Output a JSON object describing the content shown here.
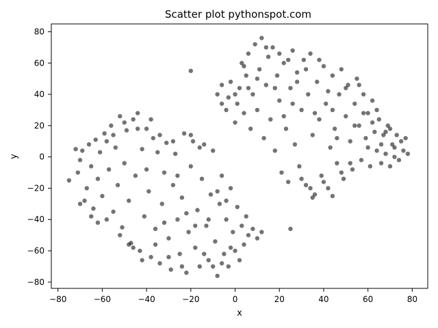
{
  "chart_data": {
    "type": "scatter",
    "title": "Scatter plot pythonspot.com",
    "xlabel": "x",
    "ylabel": "y",
    "xlim": [
      -83,
      87
    ],
    "ylim": [
      -84,
      85
    ],
    "xticks": [
      -80,
      -60,
      -40,
      -20,
      0,
      20,
      40,
      60,
      80
    ],
    "yticks": [
      -80,
      -60,
      -40,
      -20,
      0,
      20,
      40,
      60,
      80
    ],
    "xtick_labels": [
      "−80",
      "−60",
      "−40",
      "−20",
      "0",
      "20",
      "40",
      "60",
      "80"
    ],
    "ytick_labels": [
      "−80",
      "−60",
      "−40",
      "−20",
      "0",
      "20",
      "40",
      "60",
      "80"
    ],
    "grid": false,
    "point_color": "#000000",
    "point_alpha": 0.55,
    "series": [
      {
        "points": [
          [
            -75,
            -15
          ],
          [
            -72,
            5
          ],
          [
            -71,
            -10
          ],
          [
            -70,
            -2
          ],
          [
            -69,
            4
          ],
          [
            -68,
            -28
          ],
          [
            -67,
            -20
          ],
          [
            -66,
            8
          ],
          [
            -65,
            -6
          ],
          [
            -64,
            -33
          ],
          [
            -63,
            11
          ],
          [
            -62,
            -14
          ],
          [
            -61,
            3
          ],
          [
            -60,
            -25
          ],
          [
            -59,
            15
          ],
          [
            -58,
            -40
          ],
          [
            -57,
            -8
          ],
          [
            -56,
            20
          ],
          [
            -55,
            -35
          ],
          [
            -54,
            6
          ],
          [
            -53,
            -18
          ],
          [
            -52,
            26
          ],
          [
            -51,
            -45
          ],
          [
            -50,
            -4
          ],
          [
            -49,
            17
          ],
          [
            -48,
            -28
          ],
          [
            -47,
            -55
          ],
          [
            -46,
            24
          ],
          [
            -45,
            -12
          ],
          [
            -44,
            28
          ],
          [
            -43,
            -60
          ],
          [
            -42,
            5
          ],
          [
            -41,
            -38
          ],
          [
            -40,
            18
          ],
          [
            -39,
            -22
          ],
          [
            -38,
            -64
          ],
          [
            -37,
            12
          ],
          [
            -36,
            -46
          ],
          [
            -35,
            3
          ],
          [
            -34,
            -68
          ],
          [
            -33,
            -30
          ],
          [
            -32,
            -10
          ],
          [
            -31,
            9
          ],
          [
            -30,
            -52
          ],
          [
            -29,
            -72
          ],
          [
            -28,
            -18
          ],
          [
            -27,
            2
          ],
          [
            -26,
            -40
          ],
          [
            -25,
            -62
          ],
          [
            -24,
            -26
          ],
          [
            -23,
            15
          ],
          [
            -22,
            -74
          ],
          [
            -21,
            -48
          ],
          [
            -20,
            -6
          ],
          [
            -19,
            10
          ],
          [
            -18,
            -58
          ],
          [
            -17,
            -34
          ],
          [
            -16,
            -70
          ],
          [
            -15,
            -14
          ],
          [
            -14,
            8
          ],
          [
            -13,
            -44
          ],
          [
            -12,
            -66
          ],
          [
            -11,
            -24
          ],
          [
            -10,
            4
          ],
          [
            -9,
            -54
          ],
          [
            -8,
            -76
          ],
          [
            -7,
            -30
          ],
          [
            -6,
            -12
          ],
          [
            -5,
            -62
          ],
          [
            -4,
            -40
          ],
          [
            -3,
            -70
          ],
          [
            -2,
            -20
          ],
          [
            -1,
            -48
          ],
          [
            0,
            -60
          ],
          [
            1,
            -32
          ],
          [
            2,
            -66
          ],
          [
            3,
            -44
          ],
          [
            4,
            -56
          ],
          [
            5,
            -38
          ],
          [
            6,
            -50
          ],
          [
            8,
            -46
          ],
          [
            10,
            -52
          ],
          [
            12,
            -48
          ],
          [
            -70,
            -30
          ],
          [
            -65,
            -38
          ],
          [
            -62,
            -42
          ],
          [
            -58,
            10
          ],
          [
            -55,
            14
          ],
          [
            -52,
            -50
          ],
          [
            -50,
            22
          ],
          [
            -46,
            -58
          ],
          [
            -44,
            18
          ],
          [
            -42,
            -66
          ],
          [
            -40,
            -8
          ],
          [
            -38,
            24
          ],
          [
            -36,
            -56
          ],
          [
            -34,
            14
          ],
          [
            -32,
            -42
          ],
          [
            -30,
            -64
          ],
          [
            -28,
            10
          ],
          [
            -26,
            -12
          ],
          [
            -24,
            -70
          ],
          [
            -22,
            -36
          ],
          [
            -20,
            14
          ],
          [
            -18,
            -44
          ],
          [
            -16,
            6
          ],
          [
            -14,
            -62
          ],
          [
            -12,
            -40
          ],
          [
            -10,
            -70
          ],
          [
            -8,
            -22
          ],
          [
            -6,
            -68
          ],
          [
            -4,
            -28
          ],
          [
            -2,
            -58
          ],
          [
            -48,
            -56
          ],
          [
            -20,
            55
          ],
          [
            25,
            -46
          ]
        ]
      },
      {
        "points": [
          [
            -8,
            40
          ],
          [
            -6,
            46
          ],
          [
            -4,
            30
          ],
          [
            -3,
            38
          ],
          [
            -2,
            48
          ],
          [
            0,
            22
          ],
          [
            1,
            34
          ],
          [
            2,
            44
          ],
          [
            3,
            60
          ],
          [
            4,
            28
          ],
          [
            5,
            52
          ],
          [
            6,
            66
          ],
          [
            7,
            18
          ],
          [
            8,
            40
          ],
          [
            9,
            72
          ],
          [
            10,
            30
          ],
          [
            11,
            56
          ],
          [
            12,
            76
          ],
          [
            13,
            12
          ],
          [
            14,
            46
          ],
          [
            15,
            64
          ],
          [
            16,
            24
          ],
          [
            17,
            70
          ],
          [
            18,
            4
          ],
          [
            19,
            52
          ],
          [
            20,
            36
          ],
          [
            21,
            -10
          ],
          [
            22,
            60
          ],
          [
            23,
            18
          ],
          [
            24,
            -16
          ],
          [
            25,
            44
          ],
          [
            26,
            68
          ],
          [
            27,
            8
          ],
          [
            28,
            54
          ],
          [
            29,
            -6
          ],
          [
            30,
            30
          ],
          [
            31,
            62
          ],
          [
            32,
            -18
          ],
          [
            33,
            40
          ],
          [
            34,
            66
          ],
          [
            35,
            14
          ],
          [
            36,
            -24
          ],
          [
            37,
            48
          ],
          [
            38,
            24
          ],
          [
            39,
            -12
          ],
          [
            40,
            58
          ],
          [
            41,
            34
          ],
          [
            42,
            -20
          ],
          [
            43,
            6
          ],
          [
            44,
            52
          ],
          [
            45,
            18
          ],
          [
            46,
            -4
          ],
          [
            47,
            40
          ],
          [
            48,
            56
          ],
          [
            49,
            -14
          ],
          [
            50,
            26
          ],
          [
            51,
            46
          ],
          [
            52,
            10
          ],
          [
            53,
            -8
          ],
          [
            54,
            34
          ],
          [
            55,
            50
          ],
          [
            56,
            20
          ],
          [
            57,
            -2
          ],
          [
            58,
            40
          ],
          [
            59,
            12
          ],
          [
            60,
            28
          ],
          [
            61,
            -6
          ],
          [
            62,
            36
          ],
          [
            63,
            16
          ],
          [
            64,
            4
          ],
          [
            65,
            24
          ],
          [
            66,
            -4
          ],
          [
            67,
            14
          ],
          [
            68,
            2
          ],
          [
            69,
            20
          ],
          [
            70,
            -6
          ],
          [
            71,
            8
          ],
          [
            72,
            0
          ],
          [
            73,
            14
          ],
          [
            74,
            -2
          ],
          [
            75,
            10
          ],
          [
            76,
            4
          ],
          [
            77,
            12
          ],
          [
            78,
            2
          ],
          [
            -6,
            34
          ],
          [
            0,
            40
          ],
          [
            4,
            58
          ],
          [
            6,
            44
          ],
          [
            10,
            50
          ],
          [
            14,
            70
          ],
          [
            18,
            44
          ],
          [
            20,
            66
          ],
          [
            22,
            26
          ],
          [
            24,
            62
          ],
          [
            26,
            34
          ],
          [
            28,
            48
          ],
          [
            30,
            -14
          ],
          [
            32,
            56
          ],
          [
            34,
            -20
          ],
          [
            36,
            28
          ],
          [
            38,
            62
          ],
          [
            40,
            -16
          ],
          [
            42,
            42
          ],
          [
            44,
            30
          ],
          [
            46,
            12
          ],
          [
            48,
            -10
          ],
          [
            50,
            44
          ],
          [
            52,
            -4
          ],
          [
            54,
            20
          ],
          [
            56,
            46
          ],
          [
            58,
            28
          ],
          [
            60,
            6
          ],
          [
            62,
            22
          ],
          [
            64,
            30
          ],
          [
            66,
            8
          ],
          [
            68,
            16
          ],
          [
            70,
            18
          ],
          [
            72,
            6
          ],
          [
            35,
            -26
          ],
          [
            44,
            -25
          ]
        ]
      }
    ]
  }
}
